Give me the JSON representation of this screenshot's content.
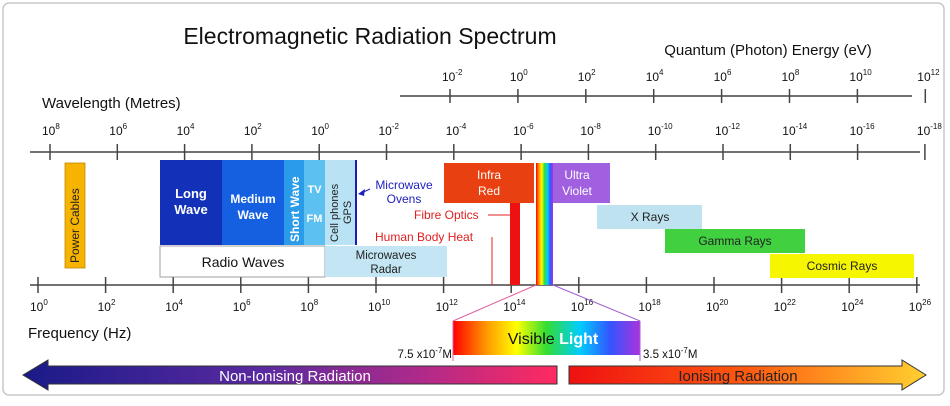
{
  "title": "Electromagnetic Radiation Spectrum",
  "energy_axis": {
    "label": "Quantum (Photon) Energy (eV)",
    "ticks": [
      {
        "base": "10",
        "exp": "-2"
      },
      {
        "base": "10",
        "exp": "0"
      },
      {
        "base": "10",
        "exp": "2"
      },
      {
        "base": "10",
        "exp": "4"
      },
      {
        "base": "10",
        "exp": "6"
      },
      {
        "base": "10",
        "exp": "8"
      },
      {
        "base": "10",
        "exp": "10"
      },
      {
        "base": "10",
        "exp": "12"
      }
    ]
  },
  "wavelength_axis": {
    "label": "Wavelength (Metres)",
    "ticks": [
      {
        "base": "10",
        "exp": "8"
      },
      {
        "base": "10",
        "exp": "6"
      },
      {
        "base": "10",
        "exp": "4"
      },
      {
        "base": "10",
        "exp": "2"
      },
      {
        "base": "10",
        "exp": "0"
      },
      {
        "base": "10",
        "exp": "-2"
      },
      {
        "base": "10",
        "exp": "-4"
      },
      {
        "base": "10",
        "exp": "-6"
      },
      {
        "base": "10",
        "exp": "-8"
      },
      {
        "base": "10",
        "exp": "-10"
      },
      {
        "base": "10",
        "exp": "-12"
      },
      {
        "base": "10",
        "exp": "-14"
      },
      {
        "base": "10",
        "exp": "-16"
      },
      {
        "base": "10",
        "exp": "-18"
      }
    ]
  },
  "frequency_axis": {
    "label": "Frequency (Hz)",
    "ticks": [
      {
        "base": "10",
        "exp": "0"
      },
      {
        "base": "10",
        "exp": "2"
      },
      {
        "base": "10",
        "exp": "4"
      },
      {
        "base": "10",
        "exp": "6"
      },
      {
        "base": "10",
        "exp": "8"
      },
      {
        "base": "10",
        "exp": "10"
      },
      {
        "base": "10",
        "exp": "12"
      },
      {
        "base": "10",
        "exp": "14"
      },
      {
        "base": "10",
        "exp": "16"
      },
      {
        "base": "10",
        "exp": "18"
      },
      {
        "base": "10",
        "exp": "20"
      },
      {
        "base": "10",
        "exp": "22"
      },
      {
        "base": "10",
        "exp": "24"
      },
      {
        "base": "10",
        "exp": "26"
      }
    ]
  },
  "bands": {
    "power_cables": "Power Cables",
    "long_wave_1": "Long",
    "long_wave_2": "Wave",
    "medium_wave_1": "Medium",
    "medium_wave_2": "Wave",
    "short_wave": "Short Wave",
    "tv": "TV",
    "fm": "FM",
    "cell_phones": "Cell phones",
    "gps": "GPS",
    "microwave_ovens_1": "Microwave",
    "microwave_ovens_2": "Ovens",
    "radio_waves": "Radio Waves",
    "microwaves_radar_1": "Microwaves",
    "microwaves_radar_2": "Radar",
    "infra_red_1": "Infra",
    "infra_red_2": "Red",
    "fibre_optics": "Fibre Optics",
    "human_body_heat": "Human Body Heat",
    "ultra_violet_1": "Ultra",
    "ultra_violet_2": "Violet",
    "x_rays": "X Rays",
    "gamma_rays": "Gamma Rays",
    "cosmic_rays": "Cosmic Rays"
  },
  "visible": {
    "label_part1": "Visible ",
    "label_part2": "Light",
    "left_wavelength": "7.5 x10",
    "left_exp": "-7",
    "left_unit": "M",
    "right_wavelength": "3.5 x10",
    "right_exp": "-7",
    "right_unit": "M"
  },
  "radiation": {
    "non_ionising": "Non-Ionising Radiation",
    "ionising": "Ionising Radiation"
  },
  "colors": {
    "long_wave": "#1230b8",
    "medium_wave": "#1560e0",
    "short_wave": "#2a9be8",
    "tv_fm": "#5cc0f0",
    "cell_gps": "#b9e3f5",
    "microwave_text": "#2020c0",
    "infra_red": "#e84010",
    "ultra_violet": "#a060e0",
    "x_rays": "#bfe2f0",
    "gamma_rays": "#40d040",
    "cosmic_rays": "#f6f600",
    "power_cables": "#f6b400",
    "fibre_red": "#ee1111"
  }
}
